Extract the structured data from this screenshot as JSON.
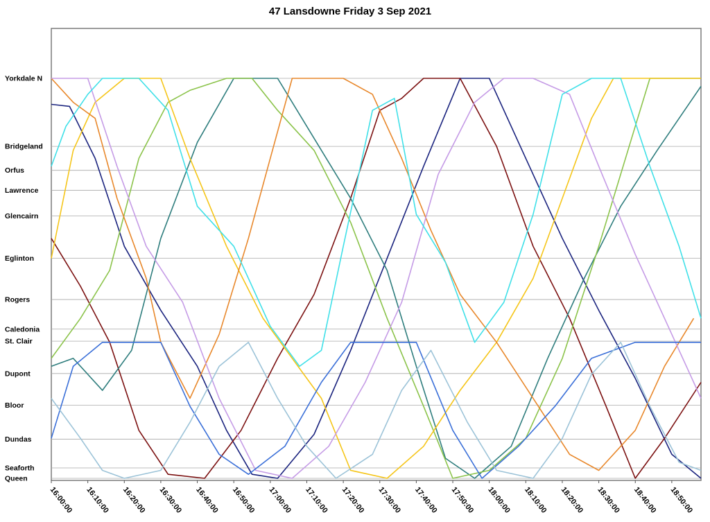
{
  "chart_data": {
    "type": "line",
    "title": "47 Lansdowne Friday 3 Sep 2021",
    "xlabel": "",
    "ylabel": "",
    "x_axis": {
      "start": "16:00:00",
      "end": "18:58:00",
      "tick_labels": [
        "16:00:00",
        "16:10:00",
        "16:20:00",
        "16:30:00",
        "16:40:00",
        "16:50:00",
        "17:00:00",
        "17:10:00",
        "17:20:00",
        "17:30:00",
        "17:40:00",
        "17:50:00",
        "18:00:00",
        "18:10:00",
        "18:20:00",
        "18:30:00",
        "18:40:00",
        "18:50:00"
      ]
    },
    "y_axis": {
      "note": "stops listed north to south; values are relative positions along route, 0 = Queen, 100 = Yorkdale N",
      "stops": [
        {
          "name": "Yorkdale N",
          "pos": 100
        },
        {
          "name": "Bridgeland",
          "pos": 83
        },
        {
          "name": "Orfus",
          "pos": 77
        },
        {
          "name": "Lawrence",
          "pos": 72
        },
        {
          "name": "Glencairn",
          "pos": 65.6
        },
        {
          "name": "Eglinton",
          "pos": 55
        },
        {
          "name": "Rogers",
          "pos": 44.7
        },
        {
          "name": "Caledonia",
          "pos": 37.3
        },
        {
          "name": "St. Clair",
          "pos": 34.3
        },
        {
          "name": "Dupont",
          "pos": 26.2
        },
        {
          "name": "Bloor",
          "pos": 18.3
        },
        {
          "name": "Dundas",
          "pos": 9.8
        },
        {
          "name": "Seaforth",
          "pos": 2.6
        },
        {
          "name": "Queen",
          "pos": 0
        }
      ]
    },
    "grid": true,
    "legend": "none",
    "series": [
      {
        "color": "#1a237e",
        "points": [
          [
            "16:00:00",
            93.5
          ],
          [
            "16:05:00",
            93
          ],
          [
            "16:12:00",
            80
          ],
          [
            "16:20:00",
            58
          ],
          [
            "16:30:00",
            42
          ],
          [
            "16:40:00",
            28
          ],
          [
            "16:48:00",
            12
          ],
          [
            "16:55:00",
            1
          ],
          [
            "17:02:00",
            0
          ],
          [
            "17:12:00",
            11
          ],
          [
            "17:22:00",
            32
          ],
          [
            "17:32:00",
            55
          ],
          [
            "17:42:00",
            78
          ],
          [
            "17:52:00",
            100
          ],
          [
            "18:00:00",
            100
          ],
          [
            "18:10:00",
            80
          ],
          [
            "18:20:00",
            60
          ],
          [
            "18:30:00",
            42
          ],
          [
            "18:40:00",
            25
          ],
          [
            "18:50:00",
            6
          ],
          [
            "18:58:00",
            0
          ]
        ]
      },
      {
        "color": "#7b1010",
        "points": [
          [
            "16:00:00",
            60
          ],
          [
            "16:08:00",
            48
          ],
          [
            "16:16:00",
            34
          ],
          [
            "16:24:00",
            12
          ],
          [
            "16:32:00",
            1
          ],
          [
            "16:42:00",
            0
          ],
          [
            "16:52:00",
            12
          ],
          [
            "17:02:00",
            30
          ],
          [
            "17:12:00",
            46
          ],
          [
            "17:22:00",
            70
          ],
          [
            "17:30:00",
            92
          ],
          [
            "17:36:00",
            95
          ],
          [
            "17:42:00",
            100
          ],
          [
            "17:52:00",
            100
          ],
          [
            "18:02:00",
            83
          ],
          [
            "18:12:00",
            58
          ],
          [
            "18:22:00",
            40
          ],
          [
            "18:32:00",
            18
          ],
          [
            "18:40:00",
            0
          ],
          [
            "18:48:00",
            10
          ],
          [
            "18:58:00",
            24
          ]
        ]
      },
      {
        "color": "#2e7d7d",
        "points": [
          [
            "16:00:00",
            28
          ],
          [
            "16:06:00",
            30
          ],
          [
            "16:14:00",
            22
          ],
          [
            "16:22:00",
            32
          ],
          [
            "16:30:00",
            60
          ],
          [
            "16:40:00",
            84
          ],
          [
            "16:50:00",
            100
          ],
          [
            "17:02:00",
            100
          ],
          [
            "17:12:00",
            85
          ],
          [
            "17:22:00",
            70
          ],
          [
            "17:32:00",
            52
          ],
          [
            "17:40:00",
            28
          ],
          [
            "17:48:00",
            5
          ],
          [
            "17:56:00",
            0
          ],
          [
            "18:06:00",
            8
          ],
          [
            "18:16:00",
            30
          ],
          [
            "18:26:00",
            50
          ],
          [
            "18:36:00",
            68
          ],
          [
            "18:46:00",
            82
          ],
          [
            "18:58:00",
            98
          ]
        ]
      },
      {
        "color": "#8bc34a",
        "points": [
          [
            "16:00:00",
            30
          ],
          [
            "16:08:00",
            40
          ],
          [
            "16:16:00",
            52
          ],
          [
            "16:24:00",
            80
          ],
          [
            "16:32:00",
            94
          ],
          [
            "16:38:00",
            97
          ],
          [
            "16:48:00",
            100
          ],
          [
            "16:55:00",
            100
          ],
          [
            "17:02:00",
            92
          ],
          [
            "17:12:00",
            82
          ],
          [
            "17:22:00",
            64
          ],
          [
            "17:32:00",
            40
          ],
          [
            "17:42:00",
            18
          ],
          [
            "17:50:00",
            0
          ],
          [
            "18:00:00",
            2
          ],
          [
            "18:10:00",
            10
          ],
          [
            "18:20:00",
            30
          ],
          [
            "18:30:00",
            58
          ],
          [
            "18:40:00",
            88
          ],
          [
            "18:44:00",
            100
          ],
          [
            "18:58:00",
            100
          ]
        ]
      },
      {
        "color": "#f5c518",
        "points": [
          [
            "16:00:00",
            55
          ],
          [
            "16:06:00",
            82
          ],
          [
            "16:12:00",
            94
          ],
          [
            "16:20:00",
            100
          ],
          [
            "16:30:00",
            100
          ],
          [
            "16:38:00",
            80
          ],
          [
            "16:48:00",
            58
          ],
          [
            "16:58:00",
            40
          ],
          [
            "17:06:00",
            30
          ],
          [
            "17:14:00",
            20
          ],
          [
            "17:22:00",
            2
          ],
          [
            "17:32:00",
            0
          ],
          [
            "17:42:00",
            8
          ],
          [
            "17:52:00",
            22
          ],
          [
            "18:02:00",
            34
          ],
          [
            "18:12:00",
            50
          ],
          [
            "18:20:00",
            70
          ],
          [
            "18:28:00",
            90
          ],
          [
            "18:34:00",
            100
          ],
          [
            "18:44:00",
            100
          ],
          [
            "18:58:00",
            100
          ]
        ]
      },
      {
        "color": "#e8872a",
        "points": [
          [
            "16:00:00",
            100
          ],
          [
            "16:06:00",
            94
          ],
          [
            "16:12:00",
            90
          ],
          [
            "16:18:00",
            70
          ],
          [
            "16:26:00",
            50
          ],
          [
            "16:30:00",
            34
          ],
          [
            "16:38:00",
            20
          ],
          [
            "16:46:00",
            36
          ],
          [
            "16:54:00",
            60
          ],
          [
            "17:00:00",
            80
          ],
          [
            "17:06:00",
            100
          ],
          [
            "17:20:00",
            100
          ],
          [
            "17:28:00",
            96
          ],
          [
            "17:36:00",
            80
          ],
          [
            "17:44:00",
            62
          ],
          [
            "17:52:00",
            46
          ],
          [
            "18:02:00",
            34
          ],
          [
            "18:12:00",
            20
          ],
          [
            "18:22:00",
            6
          ],
          [
            "18:30:00",
            2
          ],
          [
            "18:40:00",
            12
          ],
          [
            "18:48:00",
            28
          ],
          [
            "18:56:00",
            40
          ]
        ]
      },
      {
        "color": "#c59be6",
        "points": [
          [
            "16:00:00",
            100
          ],
          [
            "16:10:00",
            100
          ],
          [
            "16:18:00",
            78
          ],
          [
            "16:26:00",
            58
          ],
          [
            "16:36:00",
            44
          ],
          [
            "16:46:00",
            20
          ],
          [
            "16:56:00",
            2
          ],
          [
            "17:06:00",
            0
          ],
          [
            "17:16:00",
            8
          ],
          [
            "17:26:00",
            24
          ],
          [
            "17:36:00",
            44
          ],
          [
            "17:46:00",
            76
          ],
          [
            "17:56:00",
            94
          ],
          [
            "18:04:00",
            100
          ],
          [
            "18:12:00",
            100
          ],
          [
            "18:22:00",
            96
          ],
          [
            "18:30:00",
            78
          ],
          [
            "18:40:00",
            56
          ],
          [
            "18:48:00",
            40
          ],
          [
            "18:58:00",
            20
          ]
        ]
      },
      {
        "color": "#3fe0e8",
        "points": [
          [
            "16:00:00",
            78
          ],
          [
            "16:04:00",
            88
          ],
          [
            "16:10:00",
            96
          ],
          [
            "16:14:00",
            100
          ],
          [
            "16:24:00",
            100
          ],
          [
            "16:32:00",
            92
          ],
          [
            "16:40:00",
            68
          ],
          [
            "16:50:00",
            58
          ],
          [
            "17:00:00",
            38
          ],
          [
            "17:08:00",
            28
          ],
          [
            "17:14:00",
            32
          ],
          [
            "17:20:00",
            58
          ],
          [
            "17:28:00",
            92
          ],
          [
            "17:34:00",
            95
          ],
          [
            "17:40:00",
            66
          ],
          [
            "17:48:00",
            54
          ],
          [
            "17:56:00",
            34
          ],
          [
            "18:04:00",
            44
          ],
          [
            "18:12:00",
            66
          ],
          [
            "18:20:00",
            96
          ],
          [
            "18:28:00",
            100
          ],
          [
            "18:36:00",
            100
          ],
          [
            "18:44:00",
            78
          ],
          [
            "18:52:00",
            58
          ],
          [
            "18:58:00",
            40
          ]
        ]
      },
      {
        "color": "#3a6fd8",
        "points": [
          [
            "16:00:00",
            10
          ],
          [
            "16:06:00",
            28
          ],
          [
            "16:14:00",
            34
          ],
          [
            "16:22:00",
            34
          ],
          [
            "16:30:00",
            34
          ],
          [
            "16:38:00",
            18
          ],
          [
            "16:46:00",
            6
          ],
          [
            "16:54:00",
            1
          ],
          [
            "17:04:00",
            8
          ],
          [
            "17:14:00",
            24
          ],
          [
            "17:22:00",
            34
          ],
          [
            "17:40:00",
            34
          ],
          [
            "17:50:00",
            12
          ],
          [
            "17:58:00",
            0
          ],
          [
            "18:08:00",
            8
          ],
          [
            "18:18:00",
            18
          ],
          [
            "18:28:00",
            30
          ],
          [
            "18:40:00",
            34
          ],
          [
            "18:50:00",
            34
          ],
          [
            "18:58:00",
            34
          ]
        ]
      },
      {
        "color": "#9cc3d8",
        "points": [
          [
            "16:00:00",
            20
          ],
          [
            "16:08:00",
            10
          ],
          [
            "16:14:00",
            2
          ],
          [
            "16:20:00",
            0
          ],
          [
            "16:30:00",
            2
          ],
          [
            "16:38:00",
            14
          ],
          [
            "16:46:00",
            28
          ],
          [
            "16:54:00",
            34
          ],
          [
            "17:02:00",
            20
          ],
          [
            "17:10:00",
            8
          ],
          [
            "17:18:00",
            0
          ],
          [
            "17:28:00",
            6
          ],
          [
            "17:36:00",
            22
          ],
          [
            "17:44:00",
            32
          ],
          [
            "17:54:00",
            14
          ],
          [
            "18:02:00",
            2
          ],
          [
            "18:12:00",
            0
          ],
          [
            "18:20:00",
            10
          ],
          [
            "18:28:00",
            26
          ],
          [
            "18:36:00",
            34
          ],
          [
            "18:44:00",
            18
          ],
          [
            "18:52:00",
            4
          ],
          [
            "18:58:00",
            2
          ]
        ]
      }
    ]
  }
}
